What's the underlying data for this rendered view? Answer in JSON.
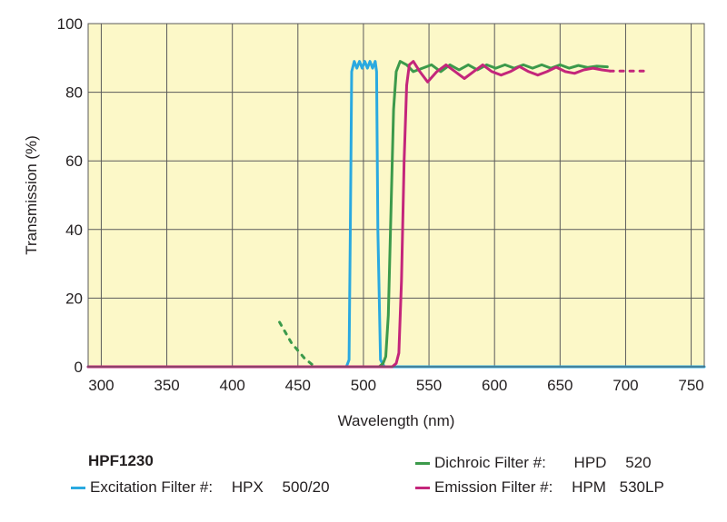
{
  "filter_set": "HPF1230",
  "legend": [
    {
      "key": "excitation",
      "label": "Excitation Filter #:",
      "code": "HPX",
      "value": "500/20",
      "color": "#2aa9e0"
    },
    {
      "key": "dichroic",
      "label": "Dichroic Filter #:",
      "code": "HPD",
      "value": "520",
      "color": "#3c9a4b"
    },
    {
      "key": "emission",
      "label": "Emission Filter #:",
      "code": "HPM",
      "value": "530LP",
      "color": "#c4267b"
    }
  ],
  "chart_data": {
    "type": "line",
    "xlabel": "Wavelength (nm)",
    "ylabel": "Transmission (%)",
    "xlim": [
      290,
      760
    ],
    "ylim": [
      0,
      100
    ],
    "xticks": [
      300,
      350,
      400,
      450,
      500,
      550,
      600,
      650,
      700,
      750
    ],
    "yticks": [
      0,
      20,
      40,
      60,
      80,
      100
    ],
    "grid": true,
    "background": "#fcf8c8",
    "grid_color": "#5a5a5a",
    "series": [
      {
        "key": "excitation",
        "color": "#2aa9e0",
        "segments": [
          {
            "style": "solid",
            "points": [
              [
                290,
                0
              ],
              [
                487,
                0
              ],
              [
                489,
                2
              ],
              [
                490,
                40
              ],
              [
                491,
                86
              ],
              [
                493,
                89
              ],
              [
                495,
                87
              ],
              [
                497,
                89
              ],
              [
                499,
                87
              ],
              [
                501,
                89
              ],
              [
                503,
                87
              ],
              [
                505,
                89
              ],
              [
                507,
                87
              ],
              [
                509,
                89
              ],
              [
                510,
                86
              ],
              [
                511,
                40
              ],
              [
                513,
                2
              ],
              [
                516,
                0
              ],
              [
                760,
                0
              ]
            ]
          }
        ]
      },
      {
        "key": "dichroic",
        "color": "#3c9a4b",
        "segments": [
          {
            "style": "dashed",
            "points": [
              [
                436,
                13
              ],
              [
                445,
                7
              ],
              [
                455,
                2.5
              ],
              [
                462,
                0.3
              ]
            ]
          },
          {
            "style": "solid",
            "points": [
              [
                460,
                0
              ],
              [
                512,
                0
              ],
              [
                515,
                1
              ],
              [
                517,
                3
              ],
              [
                519,
                15
              ],
              [
                521,
                45
              ],
              [
                523,
                75
              ],
              [
                525,
                86
              ],
              [
                528,
                89
              ],
              [
                533,
                88
              ],
              [
                538,
                86
              ],
              [
                545,
                87
              ],
              [
                552,
                88
              ],
              [
                559,
                86
              ],
              [
                566,
                88
              ],
              [
                573,
                86.5
              ],
              [
                580,
                88
              ],
              [
                587,
                86.5
              ],
              [
                594,
                88
              ],
              [
                601,
                87
              ],
              [
                608,
                88
              ],
              [
                615,
                87
              ],
              [
                622,
                88
              ],
              [
                629,
                87
              ],
              [
                636,
                88
              ],
              [
                643,
                87
              ],
              [
                650,
                88
              ],
              [
                657,
                87
              ],
              [
                664,
                87.8
              ],
              [
                671,
                87.2
              ],
              [
                678,
                87.6
              ],
              [
                686,
                87.4
              ]
            ]
          }
        ]
      },
      {
        "key": "emission",
        "color": "#c4267b",
        "segments": [
          {
            "style": "solid",
            "points": [
              [
                290,
                0
              ],
              [
                522,
                0
              ],
              [
                525,
                1
              ],
              [
                527,
                4
              ],
              [
                529,
                25
              ],
              [
                531,
                60
              ],
              [
                533,
                82
              ],
              [
                535,
                88
              ],
              [
                538,
                89
              ],
              [
                543,
                86
              ],
              [
                549,
                83
              ],
              [
                556,
                86
              ],
              [
                563,
                88
              ],
              [
                570,
                86
              ],
              [
                577,
                84
              ],
              [
                584,
                86
              ],
              [
                591,
                88
              ],
              [
                598,
                86
              ],
              [
                605,
                85
              ],
              [
                612,
                86
              ],
              [
                619,
                87.5
              ],
              [
                626,
                86
              ],
              [
                633,
                85
              ],
              [
                640,
                86
              ],
              [
                647,
                87.3
              ],
              [
                654,
                86
              ],
              [
                661,
                85.5
              ],
              [
                668,
                86.5
              ],
              [
                675,
                87
              ],
              [
                682,
                86.5
              ],
              [
                688,
                86.2
              ]
            ]
          },
          {
            "style": "dashed",
            "points": [
              [
                688,
                86.2
              ],
              [
                700,
                86.2
              ],
              [
                718,
                86.2
              ]
            ]
          }
        ]
      }
    ]
  }
}
